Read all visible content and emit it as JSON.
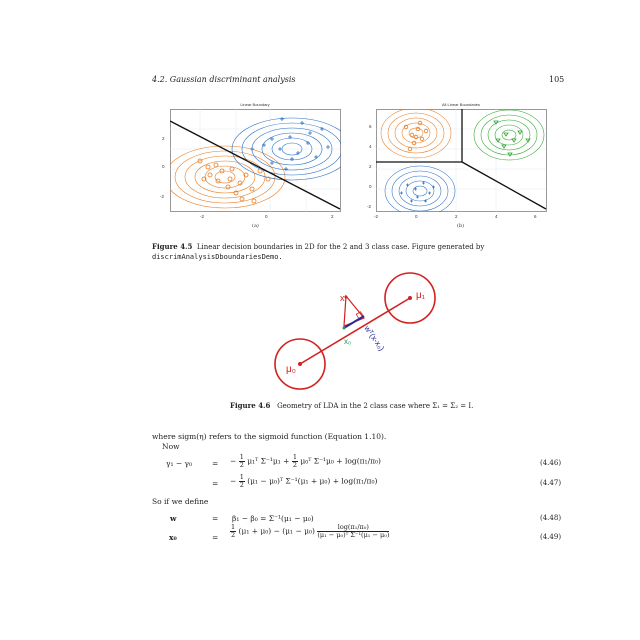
{
  "header": {
    "section": "4.2.  Gaussian discriminant analysis",
    "page": "105"
  },
  "fig45": {
    "left_plot": {
      "title": "Linear Boundary",
      "xticks": [
        "-2",
        "0",
        "2"
      ],
      "yticks": [
        "2",
        "0",
        "-2"
      ],
      "sublabel": "(a)"
    },
    "right_plot": {
      "title": "All Linear Boundaries",
      "xticks": [
        "-2",
        "0",
        "2",
        "4",
        "6"
      ],
      "yticks": [
        "6",
        "4",
        "2",
        "0",
        "-2"
      ],
      "sublabel": "(b)"
    },
    "caption_label": "Figure 4.5",
    "caption_text": "Linear decision boundaries in 2D for the 2 and 3 class case.  Figure generated by",
    "caption_code": "discrimAnalysisDboundariesDemo."
  },
  "fig46": {
    "mu1": "μ₁",
    "mu0": "μ₀",
    "x_mark": "x",
    "x0": "x₀",
    "projection": "wᵀ(x-x₀)",
    "caption_label": "Figure 4.6",
    "caption_text": "Geometry of LDA in the 2 class case where Σ₁ = Σ₂ = I."
  },
  "body": {
    "line1": "where sigm(η) refers to the sigmoid function (Equation 1.10).",
    "line2": "Now",
    "line3": "So if we define"
  },
  "equations": {
    "e446": {
      "lhs": "γ₁ − γ₀",
      "op": "=",
      "rhs_a": "−",
      "half": "1",
      "two": "2",
      "rhs_b": "μ₁ᵀ Σ⁻¹μ₁ +",
      "rhs_c": "μ₀ᵀ Σ⁻¹μ₀ + log(π₁/π₀)",
      "num": "(4.46)"
    },
    "e447": {
      "op": "=",
      "rhs_a": "−",
      "half": "1",
      "two": "2",
      "rhs_b": "(μ₁ − μ₀)ᵀ Σ⁻¹(μ₁ + μ₀) + log(π₁/π₀)",
      "num": "(4.47)"
    },
    "e448": {
      "lhs": "w",
      "op": "=",
      "rhs": "β₁ − β₀ = Σ⁻¹(μ₁ − μ₀)",
      "num": "(4.48)"
    },
    "e449": {
      "lhs": "x₀",
      "op": "=",
      "half": "1",
      "two": "2",
      "rhs_a": "(μ₁ + μ₀) − (μ₁ − μ₀)",
      "frac_num": "log(π₁/π₀)",
      "frac_den": "(μ₁ − μ₀)ᵀ Σ⁻¹(μ₁ − μ₀)",
      "num": "(4.49)"
    }
  },
  "colors": {
    "orange": "#e87a1e",
    "blue": "#2b6fc7",
    "green": "#2aa52a",
    "red": "#d42020",
    "navy": "#2a2a9a",
    "teal": "#2a9a5a"
  }
}
